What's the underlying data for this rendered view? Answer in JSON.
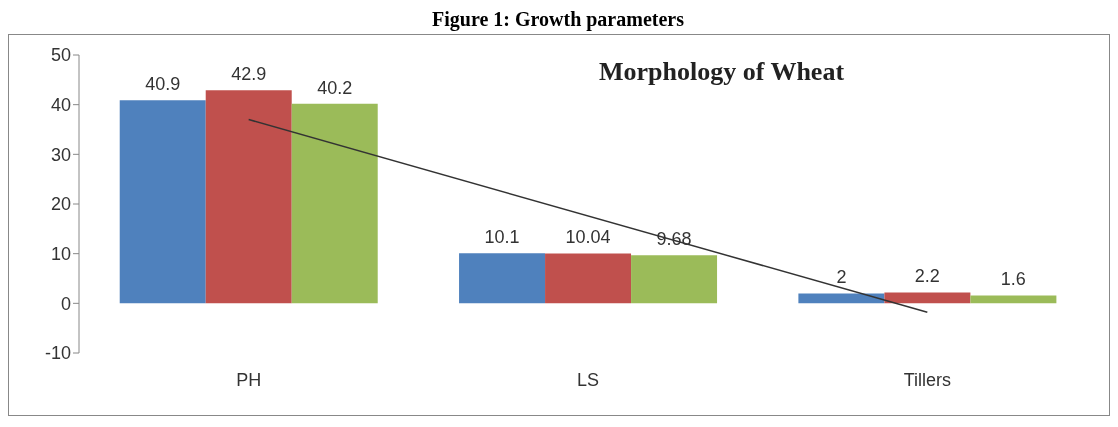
{
  "chart_data": {
    "type": "bar",
    "title": "Figure 1: Growth parameters",
    "annotations": [
      "Morphology of Wheat"
    ],
    "categories": [
      "PH",
      "LS",
      "Tillers"
    ],
    "series": [
      {
        "color": "#4f81bd",
        "values": [
          40.9,
          10.1,
          2
        ]
      },
      {
        "color": "#c0504d",
        "values": [
          42.9,
          10.04,
          2.2
        ]
      },
      {
        "color": "#9bbb59",
        "values": [
          40.2,
          9.68,
          1.6
        ]
      },
      {
        "type": "line",
        "color": "#333333",
        "x": [
          "PH",
          "Tillers"
        ],
        "values": [
          37,
          -1.8
        ],
        "value_labels": [
          null,
          null
        ]
      }
    ],
    "ylim": [
      -10,
      50
    ],
    "yticks": [
      -10,
      0,
      10,
      20,
      30,
      40,
      50
    ],
    "grid": false,
    "legend": false,
    "data_labels": true,
    "marker": "none"
  }
}
